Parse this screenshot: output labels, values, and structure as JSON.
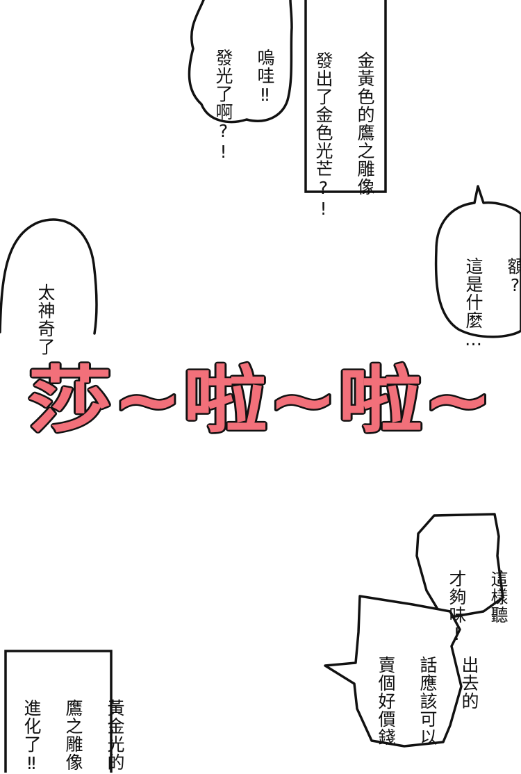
{
  "panels": {
    "bubble_top_left": {
      "lines": [
        "嗚哇‼",
        "發光了啊?!"
      ]
    },
    "caption_top_center": {
      "lines": [
        "金黃色的鷹之雕像",
        "發出了金色光芒?!"
      ]
    },
    "bubble_right": {
      "lines": [
        "額?",
        "這是什麼…"
      ]
    },
    "bubble_left": {
      "lines": [
        "太神奇了"
      ]
    },
    "sfx": {
      "text": "莎~啦~啦~",
      "fill_color": "#f2707a",
      "stroke_color": "#111111"
    },
    "bubble_bottom_right_a": {
      "lines": [
        "這樣聽",
        "才夠味!"
      ]
    },
    "bubble_bottom_right_b": {
      "lines": [
        "出去的",
        "話應該可以",
        "賣個好價錢"
      ]
    },
    "caption_bottom_left": {
      "lines": [
        "黃金光的",
        "鷹之雕像",
        "進化了‼"
      ]
    }
  }
}
